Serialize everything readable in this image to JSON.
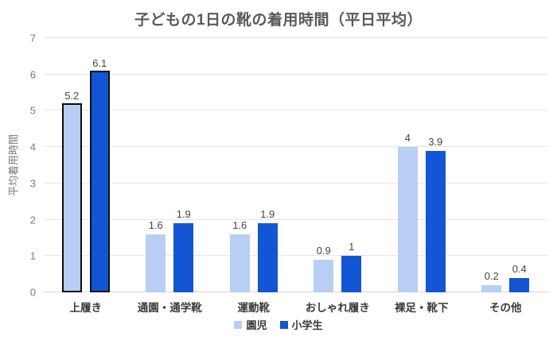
{
  "chart_data": {
    "type": "bar",
    "title": "子どもの1日の靴の着用時間（平日平均）",
    "ylabel": "平均着用時間",
    "xlabel": "",
    "ylim": [
      0,
      7
    ],
    "yticks": [
      0,
      1,
      2,
      3,
      4,
      5,
      6,
      7
    ],
    "grid": true,
    "legend_position": "bottom",
    "categories": [
      "上履き",
      "通園・通学靴",
      "運動靴",
      "おしゃれ履き",
      "裸足・靴下",
      "その他"
    ],
    "series": [
      {
        "name": "園児",
        "color": "#b9cef4",
        "values": [
          5.2,
          1.6,
          1.6,
          0.9,
          4,
          0.2
        ]
      },
      {
        "name": "小学生",
        "color": "#1355d4",
        "values": [
          6.1,
          1.9,
          1.9,
          1,
          3.9,
          0.4
        ]
      }
    ],
    "highlighted_category": "上履き",
    "highlight_category_index": 0,
    "highlight_border_color": "#0c0c0c",
    "grid_color": "#e6e6e6",
    "baseline_color": "#d6d6d6"
  }
}
